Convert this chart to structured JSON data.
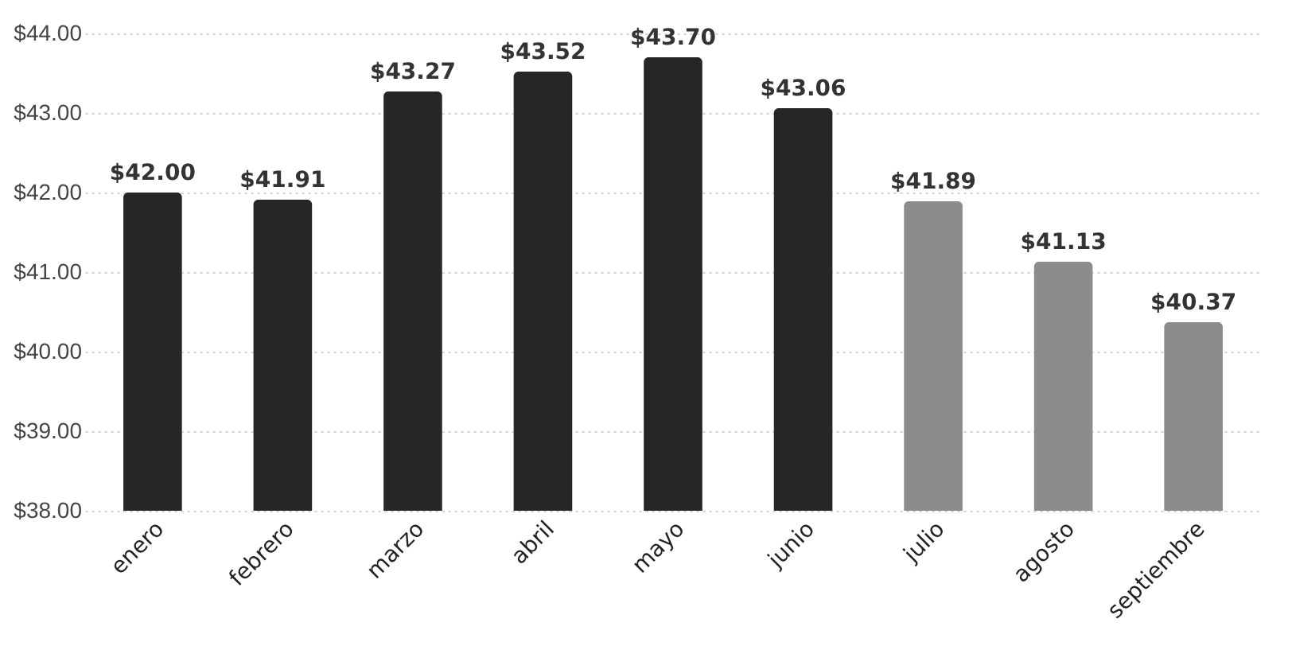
{
  "chart_data": {
    "type": "bar",
    "categories": [
      "enero",
      "febrero",
      "marzo",
      "abril",
      "mayo",
      "junio",
      "julio",
      "agosto",
      "septiembre"
    ],
    "values": [
      42.0,
      41.91,
      43.27,
      43.52,
      43.7,
      43.06,
      41.89,
      41.13,
      40.37
    ],
    "colors": [
      "#262626",
      "#262626",
      "#262626",
      "#262626",
      "#262626",
      "#262626",
      "#8c8c8c",
      "#8c8c8c",
      "#8c8c8c"
    ],
    "value_labels": [
      "$42.00",
      "$41.91",
      "$43.27",
      "$43.52",
      "$43.70",
      "$43.06",
      "$41.89",
      "$41.13",
      "$40.37"
    ],
    "ylim": [
      38,
      44
    ],
    "yticks": [
      {
        "value": 38,
        "label": "$38.00"
      },
      {
        "value": 39,
        "label": "$39.00"
      },
      {
        "value": 40,
        "label": "$40.00"
      },
      {
        "value": 41,
        "label": "$41.00"
      },
      {
        "value": 42,
        "label": "$42.00"
      },
      {
        "value": 43,
        "label": "$43.00"
      },
      {
        "value": 44,
        "label": "$44.00"
      }
    ],
    "grid": "y"
  }
}
